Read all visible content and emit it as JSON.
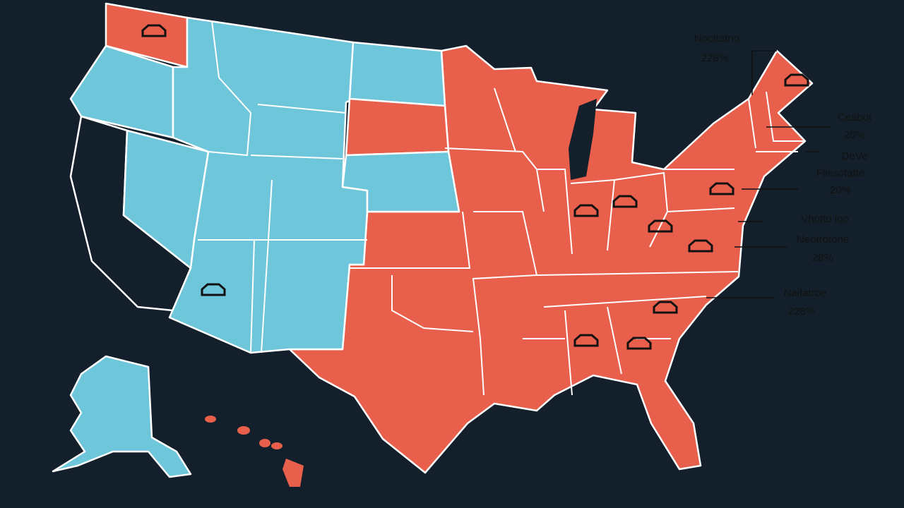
{
  "callouts": [
    {
      "lines": [
        "Nocttatno",
        "228%"
      ]
    },
    {
      "lines": [
        "Ceabot",
        "20%"
      ]
    },
    {
      "lines": [
        "DeVe",
        "Flissotatte",
        "20%"
      ]
    },
    {
      "lines": [
        "Vhotto ioo"
      ]
    },
    {
      "lines": [
        "Neotrotone",
        "28%"
      ]
    },
    {
      "lines": [
        "Naifatroe",
        "228%"
      ]
    }
  ]
}
